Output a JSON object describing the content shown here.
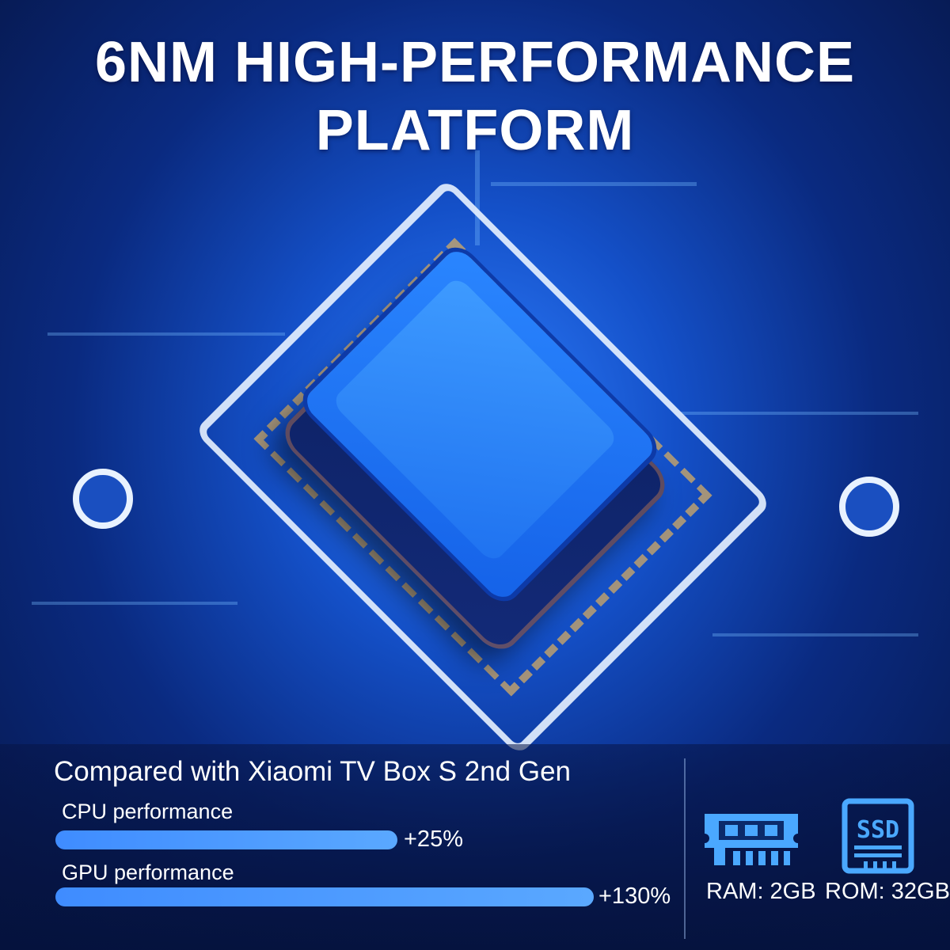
{
  "headline": {
    "line1": "6NM HIGH-PERFORMANCE",
    "line2": "PLATFORM"
  },
  "comparison": {
    "title": "Compared with Xiaomi TV Box S 2nd Gen",
    "metrics": [
      {
        "label": "CPU performance",
        "value": "+25%",
        "percent": 25
      },
      {
        "label": "GPU performance",
        "value": "+130%",
        "percent": 130
      }
    ]
  },
  "specs": [
    {
      "icon": "ram-icon",
      "label": "RAM: 2GB"
    },
    {
      "icon": "ssd-icon",
      "label": "ROM: 32GB"
    }
  ],
  "colors": {
    "accent": "#4a9bff",
    "background": "#0a2a80"
  }
}
